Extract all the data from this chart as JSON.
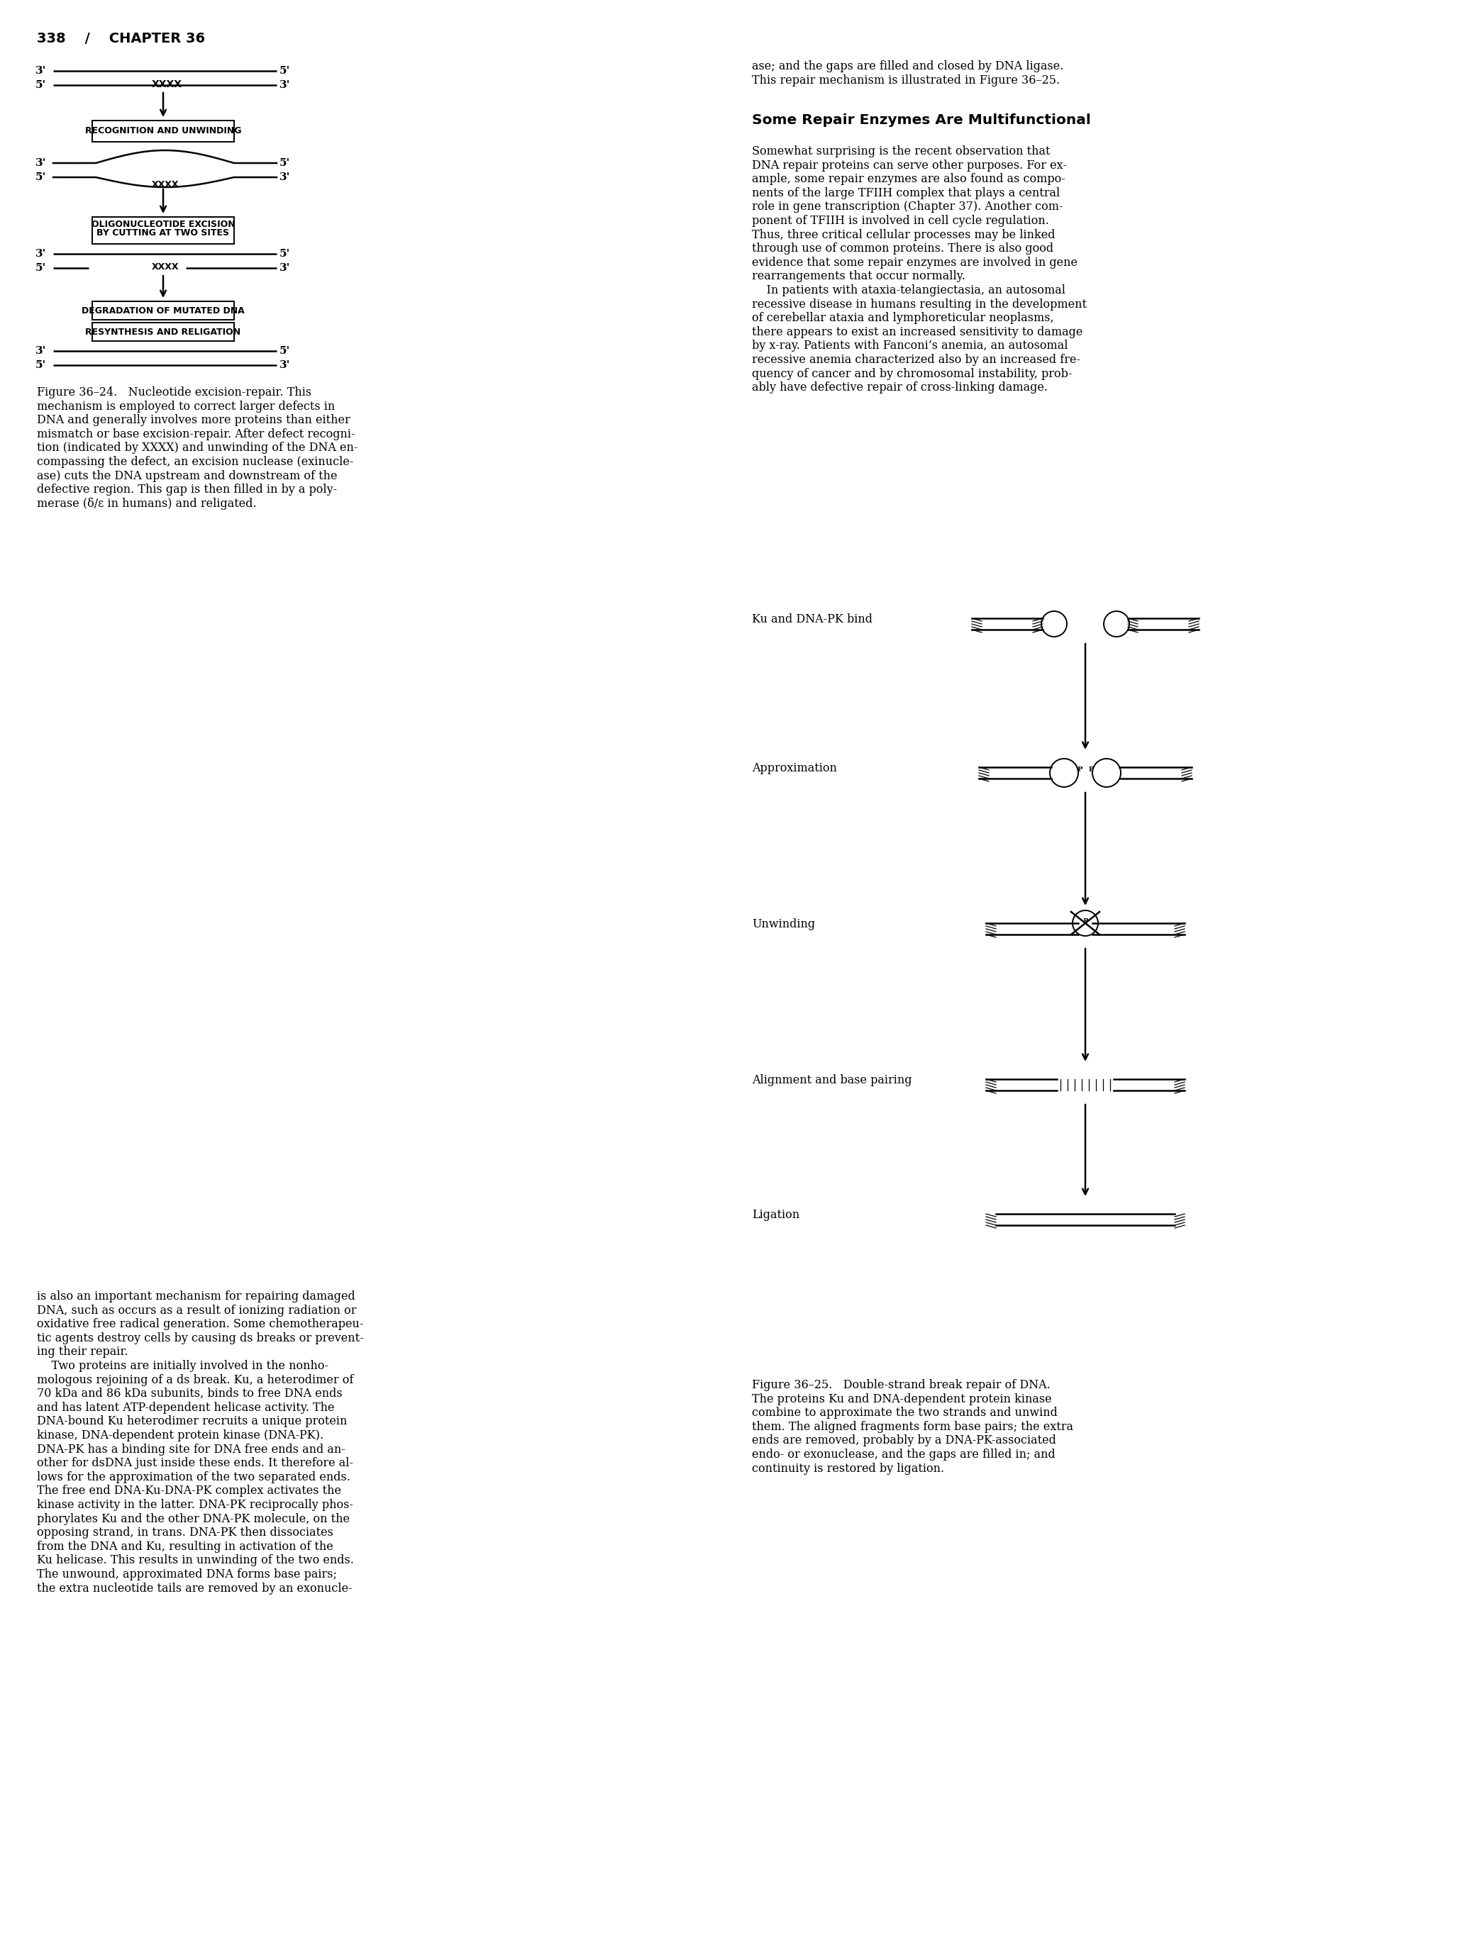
{
  "page_header": "338    /    CHAPTER 36",
  "bg_color": "#ffffff",
  "text_color": "#000000",
  "figure_left": {
    "title": "Figure 36–24.",
    "title_bold": true,
    "caption": "Nucleotide excision-repair. This mechanism is employed to correct larger defects in DNA and generally involves more proteins than either mismatch or base excision-repair. After defect recognition (indicated by XXXX) and unwinding of the DNA encompassing the defect, an excision nuclease (exinuclease) cuts the DNA upstream and downstream of the defective region. This gap is then filled in by a polymerase (δ/ε in humans) and religated.",
    "boxes": [
      "RECOGNITION AND UNWINDING",
      "OLIGONUCLEOTIDE EXCISION\nBY CUTTING AT TWO SITES",
      "DEGRADATION OF MUTATED DNA",
      "RESYNTHESIS AND RELIGATION"
    ]
  },
  "text_right_top": "ase; and the gaps are filled and closed by DNA ligase.\nThis repair mechanism is illustrated in Figure 36–25.",
  "section_heading": "Some Repair Enzymes Are Multifunctional",
  "section_body": "Somewhat surprising is the recent observation that DNA repair proteins can serve other purposes. For example, some repair enzymes are also found as components of the large TFIIH complex that plays a central role in gene transcription (Chapter 37). Another component of TFIIH is involved in cell cycle regulation. Thus, three critical cellular processes may be linked through use of common proteins. There is also good evidence that some repair enzymes are involved in gene rearrangements that occur normally.\n    In patients with ataxia-telangiectasia, an autosomal recessive disease in humans resulting in the development of cerebellar ataxia and lymphoreticular neoplasms, there appears to exist an increased sensitivity to damage by x-ray. Patients with Fanconi’s anemia, an autosomal recessive anemia characterized also by an increased frequency of cancer and by chromosomal instability, probably have defective repair of cross-linking damage.",
  "body_left_lower": "is also an important mechanism for repairing damaged DNA, such as occurs as a result of ionizing radiation or oxidative free radical generation. Some chemotherapeutic agents destroy cells by causing ds breaks or preventing their repair.\n    Two proteins are initially involved in the nonhomologous rejoining of a ds break. Ku, a heterodimer of 70 kDa and 86 kDa subunits, binds to free DNA ends and has latent ATP-dependent helicase activity. The DNA-bound Ku heterodimer recruits a unique protein kinase, DNA-dependent protein kinase (DNA-PK). DNA-PK has a binding site for DNA free ends and another for dsDNA just inside these ends. It therefore allows for the approximation of the two separated ends. The free end DNA-Ku-DNA-PK complex activates the kinase activity in the latter. DNA-PK reciprocally phosphorylates Ku and the other DNA-PK molecule, on the opposing strand, in trans. DNA-PK then dissociates from the DNA and Ku, resulting in activation of the Ku helicase. This results in unwinding of the two ends. The unwound, approximated DNA forms base pairs; the extra nucleotide tails are removed by an exonucle-",
  "figure_right_labels": [
    "Ku and DNA-PK bind",
    "Approximation",
    "Unwinding",
    "Alignment and base pairing",
    "Ligation"
  ],
  "figure_right_caption_title": "Figure 36–25.",
  "figure_right_caption": "Double-strand break repair of DNA. The proteins Ku and DNA-dependent protein kinase combine to approximate the two strands and unwind them. The aligned fragments form base pairs; the extra ends are removed, probably by a DNA-PK-associated endo- or exonuclease, and the gaps are filled in; and continuity is restored by ligation."
}
